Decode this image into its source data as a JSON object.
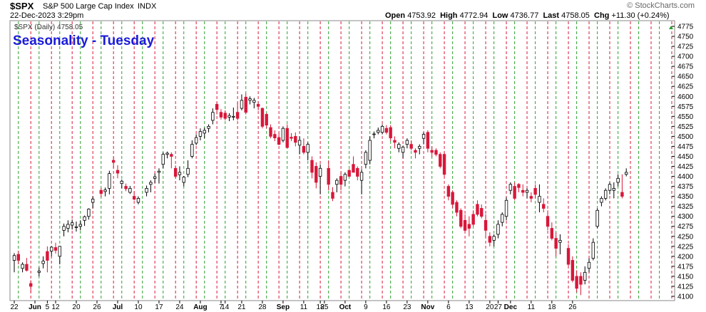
{
  "header": {
    "symbol": "$SPX",
    "subtitle": "S&P 500 Large Cap Index",
    "exchange": "INDX",
    "brand": "© StockCharts.com",
    "date": "22-Dec-2023 3:29pm",
    "open_label": "Open",
    "open": "4753.92",
    "high_label": "High",
    "high": "4772.94",
    "low_label": "Low",
    "low": "4736.77",
    "last_label": "Last",
    "last": "4758.05",
    "chg_label": "Chg",
    "chg": "+11.30 (+0.24%)"
  },
  "legend": "$SPX (Daily) 4758.05",
  "colors": {
    "up": "#ffffff",
    "down": "#d8173a",
    "dark": "#000000",
    "current": "#ffff33",
    "tuesday": "#2e9e2e",
    "friday": "#d8173a",
    "title": "#1a1adb"
  },
  "chart_data": {
    "type": "candlestick",
    "title": "Seasonality - Tuesday",
    "ylim": [
      4100,
      4775
    ],
    "y_ticks": [
      "4775",
      "4750",
      "4725",
      "4700",
      "4675",
      "4650",
      "4625",
      "4600",
      "4575",
      "4550",
      "4525",
      "4500",
      "4475",
      "4450",
      "4425",
      "4400",
      "4375",
      "4350",
      "4325",
      "4300",
      "4275",
      "4250",
      "4225",
      "4200",
      "4175",
      "4150",
      "4125",
      "4100"
    ],
    "y_axis_side": "right",
    "x_labels": [
      "22",
      "Jun",
      "5",
      "12",
      "20",
      "26",
      "Jul",
      "10",
      "17",
      "24",
      "Aug",
      "7",
      "14",
      "21",
      "28",
      "Sep",
      "11",
      "18",
      "25",
      "Oct",
      "9",
      "16",
      "23",
      "Nov",
      "6",
      "13",
      "20",
      "27",
      "Dec",
      "11",
      "18",
      "26"
    ],
    "vertical_markers": "green dashed = Tuesdays, red dashed = Fridays",
    "candles": [
      {
        "d": "2023-05-22",
        "o": 4190,
        "h": 4208,
        "l": 4160,
        "c": 4202
      },
      {
        "d": "2023-05-23",
        "o": 4205,
        "h": 4214,
        "l": 4180,
        "c": 4190
      },
      {
        "d": "2023-05-24",
        "o": 4170,
        "h": 4185,
        "l": 4160,
        "c": 4180
      },
      {
        "d": "2023-05-25",
        "o": 4180,
        "h": 4196,
        "l": 4162,
        "c": 4165
      },
      {
        "d": "2023-05-26",
        "o": 4132,
        "h": 4140,
        "l": 4110,
        "c": 4125
      },
      {
        "d": "2023-05-30",
        "o": 4160,
        "h": 4172,
        "l": 4150,
        "c": 4163
      },
      {
        "d": "2023-05-31",
        "o": 4182,
        "h": 4200,
        "l": 4170,
        "c": 4188
      },
      {
        "d": "2023-06-01",
        "o": 4212,
        "h": 4225,
        "l": 4160,
        "c": 4190
      },
      {
        "d": "2023-06-02",
        "o": 4213,
        "h": 4225,
        "l": 4200,
        "c": 4223
      },
      {
        "d": "2023-06-05",
        "o": 4222,
        "h": 4234,
        "l": 4207,
        "c": 4215
      },
      {
        "d": "2023-06-06",
        "o": 4200,
        "h": 4225,
        "l": 4180,
        "c": 4225
      },
      {
        "d": "2023-06-07",
        "o": 4265,
        "h": 4282,
        "l": 4250,
        "c": 4275
      },
      {
        "d": "2023-06-08",
        "o": 4270,
        "h": 4290,
        "l": 4260,
        "c": 4280
      },
      {
        "d": "2023-06-09",
        "o": 4278,
        "h": 4292,
        "l": 4267,
        "c": 4284
      },
      {
        "d": "2023-06-12",
        "o": 4272,
        "h": 4287,
        "l": 4262,
        "c": 4274
      },
      {
        "d": "2023-06-13",
        "o": 4275,
        "h": 4290,
        "l": 4265,
        "c": 4280
      },
      {
        "d": "2023-06-14",
        "o": 4290,
        "h": 4302,
        "l": 4276,
        "c": 4299
      },
      {
        "d": "2023-06-15",
        "o": 4300,
        "h": 4320,
        "l": 4292,
        "c": 4318
      },
      {
        "d": "2023-06-16",
        "o": 4335,
        "h": 4350,
        "l": 4320,
        "c": 4343
      },
      {
        "d": "2023-06-20",
        "o": 4365,
        "h": 4371,
        "l": 4348,
        "c": 4357
      },
      {
        "d": "2023-06-21",
        "o": 4362,
        "h": 4372,
        "l": 4350,
        "c": 4366
      },
      {
        "d": "2023-06-22",
        "o": 4370,
        "h": 4414,
        "l": 4355,
        "c": 4407
      },
      {
        "d": "2023-06-23",
        "o": 4440,
        "h": 4448,
        "l": 4420,
        "c": 4435
      },
      {
        "d": "2023-06-26",
        "o": 4415,
        "h": 4428,
        "l": 4395,
        "c": 4408
      },
      {
        "d": "2023-06-27",
        "o": 4382,
        "h": 4392,
        "l": 4370,
        "c": 4388
      },
      {
        "d": "2023-06-28",
        "o": 4375,
        "h": 4382,
        "l": 4363,
        "c": 4369
      },
      {
        "d": "2023-06-29",
        "o": 4360,
        "h": 4376,
        "l": 4356,
        "c": 4370
      },
      {
        "d": "2023-06-30",
        "o": 4350,
        "h": 4362,
        "l": 4340,
        "c": 4343
      },
      {
        "d": "2023-07-03",
        "o": 4335,
        "h": 4350,
        "l": 4330,
        "c": 4345
      },
      {
        "d": "2023-07-05",
        "o": 4360,
        "h": 4377,
        "l": 4350,
        "c": 4370
      },
      {
        "d": "2023-07-06",
        "o": 4380,
        "h": 4390,
        "l": 4360,
        "c": 4385
      },
      {
        "d": "2023-07-07",
        "o": 4395,
        "h": 4407,
        "l": 4383,
        "c": 4399
      },
      {
        "d": "2023-07-10",
        "o": 4410,
        "h": 4420,
        "l": 4382,
        "c": 4413
      },
      {
        "d": "2023-07-11",
        "o": 4430,
        "h": 4460,
        "l": 4420,
        "c": 4455
      },
      {
        "d": "2023-07-12",
        "o": 4455,
        "h": 4462,
        "l": 4445,
        "c": 4458
      },
      {
        "d": "2023-07-13",
        "o": 4455,
        "h": 4460,
        "l": 4420,
        "c": 4450
      },
      {
        "d": "2023-07-14",
        "o": 4420,
        "h": 4427,
        "l": 4395,
        "c": 4400
      },
      {
        "d": "2023-07-17",
        "o": 4404,
        "h": 4425,
        "l": 4390,
        "c": 4410
      },
      {
        "d": "2023-07-18",
        "o": 4385,
        "h": 4401,
        "l": 4375,
        "c": 4398
      },
      {
        "d": "2023-07-19",
        "o": 4405,
        "h": 4440,
        "l": 4398,
        "c": 4420
      },
      {
        "d": "2023-07-20",
        "o": 4450,
        "h": 4490,
        "l": 4445,
        "c": 4480
      },
      {
        "d": "2023-07-21",
        "o": 4483,
        "h": 4505,
        "l": 4478,
        "c": 4497
      },
      {
        "d": "2023-07-24",
        "o": 4500,
        "h": 4520,
        "l": 4490,
        "c": 4512
      },
      {
        "d": "2023-07-25",
        "o": 4508,
        "h": 4522,
        "l": 4495,
        "c": 4515
      },
      {
        "d": "2023-07-26",
        "o": 4520,
        "h": 4530,
        "l": 4510,
        "c": 4525
      },
      {
        "d": "2023-07-27",
        "o": 4540,
        "h": 4570,
        "l": 4530,
        "c": 4560
      },
      {
        "d": "2023-07-28",
        "o": 4580,
        "h": 4585,
        "l": 4555,
        "c": 4567
      },
      {
        "d": "2023-07-31",
        "o": 4560,
        "h": 4568,
        "l": 4542,
        "c": 4548
      },
      {
        "d": "2023-08-01",
        "o": 4558,
        "h": 4565,
        "l": 4540,
        "c": 4545
      },
      {
        "d": "2023-08-02",
        "o": 4548,
        "h": 4558,
        "l": 4538,
        "c": 4552
      },
      {
        "d": "2023-08-03",
        "o": 4548,
        "h": 4572,
        "l": 4540,
        "c": 4550
      },
      {
        "d": "2023-08-04",
        "o": 4560,
        "h": 4585,
        "l": 4540,
        "c": 4545
      },
      {
        "d": "2023-08-07",
        "o": 4570,
        "h": 4605,
        "l": 4565,
        "c": 4590
      },
      {
        "d": "2023-08-08",
        "o": 4598,
        "h": 4607,
        "l": 4555,
        "c": 4560
      },
      {
        "d": "2023-08-09",
        "o": 4590,
        "h": 4600,
        "l": 4580,
        "c": 4594
      },
      {
        "d": "2023-08-10",
        "o": 4585,
        "h": 4596,
        "l": 4570,
        "c": 4590
      },
      {
        "d": "2023-08-11",
        "o": 4580,
        "h": 4588,
        "l": 4565,
        "c": 4575
      },
      {
        "d": "2023-08-14",
        "o": 4570,
        "h": 4572,
        "l": 4520,
        "c": 4525
      },
      {
        "d": "2023-08-15",
        "o": 4555,
        "h": 4558,
        "l": 4520,
        "c": 4528
      },
      {
        "d": "2023-08-16",
        "o": 4522,
        "h": 4530,
        "l": 4495,
        "c": 4500
      },
      {
        "d": "2023-08-17",
        "o": 4505,
        "h": 4515,
        "l": 4488,
        "c": 4496
      },
      {
        "d": "2023-08-18",
        "o": 4497,
        "h": 4508,
        "l": 4478,
        "c": 4480
      },
      {
        "d": "2023-08-21",
        "o": 4490,
        "h": 4525,
        "l": 4485,
        "c": 4520
      },
      {
        "d": "2023-08-22",
        "o": 4520,
        "h": 4530,
        "l": 4470,
        "c": 4472
      },
      {
        "d": "2023-08-23",
        "o": 4498,
        "h": 4508,
        "l": 4488,
        "c": 4495
      },
      {
        "d": "2023-08-24",
        "o": 4500,
        "h": 4510,
        "l": 4475,
        "c": 4485
      },
      {
        "d": "2023-08-25",
        "o": 4478,
        "h": 4500,
        "l": 4455,
        "c": 4490
      },
      {
        "d": "2023-08-28",
        "o": 4475,
        "h": 4495,
        "l": 4455,
        "c": 4460
      },
      {
        "d": "2023-08-29",
        "o": 4460,
        "h": 4485,
        "l": 4440,
        "c": 4480
      },
      {
        "d": "2023-08-30",
        "o": 4440,
        "h": 4450,
        "l": 4395,
        "c": 4410
      },
      {
        "d": "2023-08-31",
        "o": 4425,
        "h": 4435,
        "l": 4370,
        "c": 4385
      },
      {
        "d": "2023-09-01",
        "o": 4400,
        "h": 4430,
        "l": 4355,
        "c": 4420
      },
      {
        "d": "2023-09-05",
        "o": 4420,
        "h": 4440,
        "l": 4365,
        "c": 4380
      },
      {
        "d": "2023-09-06",
        "o": 4360,
        "h": 4373,
        "l": 4338,
        "c": 4345
      },
      {
        "d": "2023-09-07",
        "o": 4380,
        "h": 4395,
        "l": 4360,
        "c": 4390
      },
      {
        "d": "2023-09-08",
        "o": 4400,
        "h": 4410,
        "l": 4365,
        "c": 4380
      },
      {
        "d": "2023-09-11",
        "o": 4390,
        "h": 4410,
        "l": 4375,
        "c": 4405
      },
      {
        "d": "2023-09-12",
        "o": 4415,
        "h": 4418,
        "l": 4400,
        "c": 4400
      },
      {
        "d": "2023-09-13",
        "o": 4430,
        "h": 4450,
        "l": 4410,
        "c": 4410
      },
      {
        "d": "2023-09-14",
        "o": 4420,
        "h": 4425,
        "l": 4390,
        "c": 4400
      },
      {
        "d": "2023-09-15",
        "o": 4390,
        "h": 4418,
        "l": 4355,
        "c": 4410
      },
      {
        "d": "2023-09-18",
        "o": 4430,
        "h": 4465,
        "l": 4420,
        "c": 4460
      },
      {
        "d": "2023-09-19",
        "o": 4440,
        "h": 4500,
        "l": 4430,
        "c": 4490
      },
      {
        "d": "2023-09-20",
        "o": 4505,
        "h": 4512,
        "l": 4495,
        "c": 4506
      },
      {
        "d": "2023-09-21",
        "o": 4510,
        "h": 4522,
        "l": 4505,
        "c": 4515
      },
      {
        "d": "2023-09-22",
        "o": 4510,
        "h": 4530,
        "l": 4505,
        "c": 4525
      },
      {
        "d": "2023-09-25",
        "o": 4520,
        "h": 4528,
        "l": 4505,
        "c": 4510
      },
      {
        "d": "2023-09-26",
        "o": 4522,
        "h": 4528,
        "l": 4488,
        "c": 4496
      },
      {
        "d": "2023-09-27",
        "o": 4490,
        "h": 4500,
        "l": 4470,
        "c": 4485
      },
      {
        "d": "2023-09-28",
        "o": 4470,
        "h": 4485,
        "l": 4460,
        "c": 4480
      },
      {
        "d": "2023-09-29",
        "o": 4460,
        "h": 4477,
        "l": 4445,
        "c": 4473
      },
      {
        "d": "2023-10-02",
        "o": 4480,
        "h": 4495,
        "l": 4470,
        "c": 4490
      },
      {
        "d": "2023-10-03",
        "o": 4480,
        "h": 4490,
        "l": 4465,
        "c": 4470
      },
      {
        "d": "2023-10-04",
        "o": 4465,
        "h": 4470,
        "l": 4445,
        "c": 4460
      },
      {
        "d": "2023-10-05",
        "o": 4470,
        "h": 4480,
        "l": 4455,
        "c": 4475
      },
      {
        "d": "2023-10-06",
        "o": 4495,
        "h": 4510,
        "l": 4480,
        "c": 4505
      },
      {
        "d": "2023-10-09",
        "o": 4510,
        "h": 4515,
        "l": 4460,
        "c": 4470
      },
      {
        "d": "2023-10-10",
        "o": 4465,
        "h": 4475,
        "l": 4448,
        "c": 4460
      },
      {
        "d": "2023-10-11",
        "o": 4465,
        "h": 4470,
        "l": 4450,
        "c": 4455
      },
      {
        "d": "2023-10-12",
        "o": 4455,
        "h": 4460,
        "l": 4420,
        "c": 4425
      },
      {
        "d": "2023-10-13",
        "o": 4455,
        "h": 4462,
        "l": 4398,
        "c": 4405
      },
      {
        "d": "2023-10-16",
        "o": 4375,
        "h": 4380,
        "l": 4340,
        "c": 4350
      },
      {
        "d": "2023-10-17",
        "o": 4360,
        "h": 4365,
        "l": 4320,
        "c": 4330
      },
      {
        "d": "2023-10-18",
        "o": 4335,
        "h": 4340,
        "l": 4300,
        "c": 4310
      },
      {
        "d": "2023-10-19",
        "o": 4315,
        "h": 4320,
        "l": 4270,
        "c": 4275
      },
      {
        "d": "2023-10-20",
        "o": 4290,
        "h": 4305,
        "l": 4260,
        "c": 4265
      },
      {
        "d": "2023-10-23",
        "o": 4280,
        "h": 4300,
        "l": 4250,
        "c": 4270
      },
      {
        "d": "2023-10-24",
        "o": 4305,
        "h": 4315,
        "l": 4275,
        "c": 4280
      },
      {
        "d": "2023-10-25",
        "o": 4330,
        "h": 4340,
        "l": 4300,
        "c": 4305
      },
      {
        "d": "2023-10-26",
        "o": 4320,
        "h": 4330,
        "l": 4295,
        "c": 4300
      },
      {
        "d": "2023-10-27",
        "o": 4290,
        "h": 4305,
        "l": 4248,
        "c": 4265
      },
      {
        "d": "2023-10-30",
        "o": 4250,
        "h": 4260,
        "l": 4225,
        "c": 4235
      },
      {
        "d": "2023-10-31",
        "o": 4240,
        "h": 4255,
        "l": 4225,
        "c": 4250
      },
      {
        "d": "2023-11-01",
        "o": 4255,
        "h": 4290,
        "l": 4245,
        "c": 4280
      },
      {
        "d": "2023-11-02",
        "o": 4285,
        "h": 4310,
        "l": 4275,
        "c": 4305
      },
      {
        "d": "2023-11-03",
        "o": 4300,
        "h": 4348,
        "l": 4290,
        "c": 4340
      },
      {
        "d": "2023-11-06",
        "o": 4365,
        "h": 4385,
        "l": 4355,
        "c": 4380
      },
      {
        "d": "2023-11-07",
        "o": 4375,
        "h": 4385,
        "l": 4340,
        "c": 4345
      },
      {
        "d": "2023-11-08",
        "o": 4380,
        "h": 4383,
        "l": 4360,
        "c": 4372
      },
      {
        "d": "2023-11-09",
        "o": 4365,
        "h": 4380,
        "l": 4350,
        "c": 4360
      },
      {
        "d": "2023-11-10",
        "o": 4360,
        "h": 4370,
        "l": 4345,
        "c": 4365
      },
      {
        "d": "2023-11-13",
        "o": 4350,
        "h": 4360,
        "l": 4335,
        "c": 4345
      },
      {
        "d": "2023-11-14",
        "o": 4370,
        "h": 4380,
        "l": 4345,
        "c": 4355
      },
      {
        "d": "2023-11-15",
        "o": 4335,
        "h": 4380,
        "l": 4310,
        "c": 4350
      },
      {
        "d": "2023-11-16",
        "o": 4330,
        "h": 4345,
        "l": 4310,
        "c": 4320
      },
      {
        "d": "2023-11-17",
        "o": 4300,
        "h": 4315,
        "l": 4265,
        "c": 4275
      },
      {
        "d": "2023-11-20",
        "o": 4270,
        "h": 4285,
        "l": 4240,
        "c": 4245
      },
      {
        "d": "2023-11-21",
        "o": 4245,
        "h": 4260,
        "l": 4200,
        "c": 4220
      },
      {
        "d": "2023-11-22",
        "o": 4235,
        "h": 4255,
        "l": 4205,
        "c": 4240
      },
      {
        "d": "2023-11-24",
        "o": 4220,
        "h": 4230,
        "l": 4175,
        "c": 4180
      },
      {
        "d": "2023-11-27",
        "o": 4190,
        "h": 4200,
        "l": 4135,
        "c": 4140
      },
      {
        "d": "2023-11-28",
        "o": 4150,
        "h": 4165,
        "l": 4110,
        "c": 4120
      },
      {
        "d": "2023-11-29",
        "o": 4150,
        "h": 4160,
        "l": 4103,
        "c": 4130
      },
      {
        "d": "2023-11-30",
        "o": 4140,
        "h": 4175,
        "l": 4130,
        "c": 4160
      },
      {
        "d": "2023-12-01",
        "o": 4170,
        "h": 4195,
        "l": 4160,
        "c": 4185
      },
      {
        "d": "2023-12-04",
        "o": 4195,
        "h": 4245,
        "l": 4190,
        "c": 4235
      },
      {
        "d": "2023-12-05",
        "o": 4275,
        "h": 4320,
        "l": 4270,
        "c": 4315
      },
      {
        "d": "2023-12-06",
        "o": 4335,
        "h": 4350,
        "l": 4325,
        "c": 4345
      },
      {
        "d": "2023-12-07",
        "o": 4345,
        "h": 4370,
        "l": 4340,
        "c": 4365
      },
      {
        "d": "2023-12-08",
        "o": 4365,
        "h": 4385,
        "l": 4355,
        "c": 4380
      },
      {
        "d": "2023-12-11",
        "o": 4365,
        "h": 4385,
        "l": 4345,
        "c": 4370
      },
      {
        "d": "2023-12-12",
        "o": 4385,
        "h": 4405,
        "l": 4375,
        "c": 4395
      },
      {
        "d": "2023-12-13",
        "o": 4360,
        "h": 4405,
        "l": 4345,
        "c": 4350
      },
      {
        "d": "2023-12-14",
        "o": 4405,
        "h": 4420,
        "l": 4400,
        "c": 4410
      }
    ]
  }
}
